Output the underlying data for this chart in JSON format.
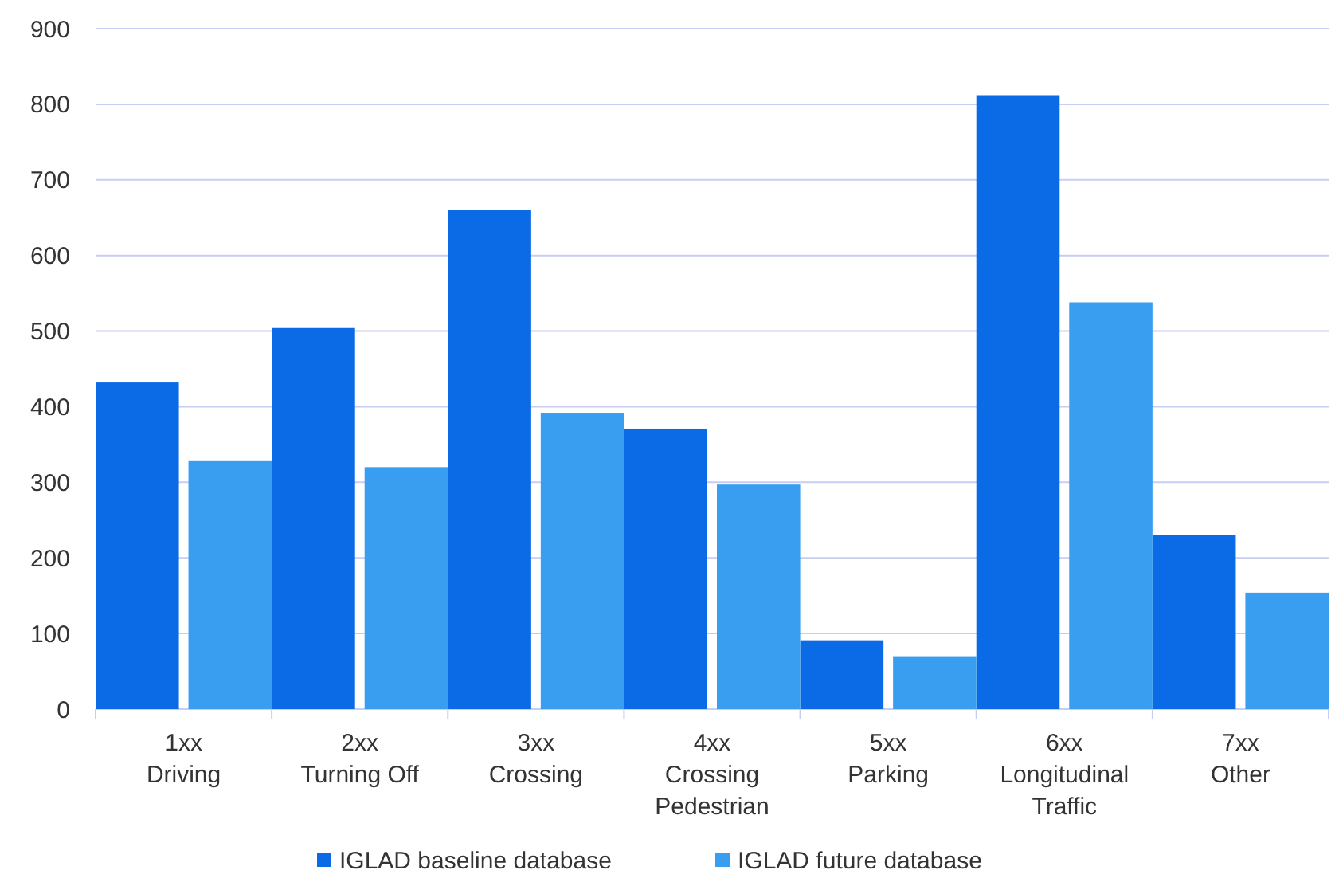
{
  "chart_data": {
    "type": "bar",
    "categories": [
      "1xx\nDriving",
      "2xx\nTurning Off",
      "3xx\nCrossing",
      "4xx\nCrossing\nPedestrian",
      "5xx\nParking",
      "6xx\nLongitudinal\nTraffic",
      "7xx\nOther"
    ],
    "series": [
      {
        "name": "IGLAD baseline database",
        "color": "#0b6be6",
        "values": [
          432,
          504,
          660,
          371,
          91,
          812,
          230
        ]
      },
      {
        "name": "IGLAD future database",
        "color": "#3a9ef0",
        "values": [
          329,
          320,
          392,
          297,
          70,
          538,
          154
        ]
      }
    ],
    "ylim": [
      0,
      900
    ],
    "yticks": [
      0,
      100,
      200,
      300,
      400,
      500,
      600,
      700,
      800,
      900
    ],
    "grid": "y",
    "legend": "bottom"
  }
}
